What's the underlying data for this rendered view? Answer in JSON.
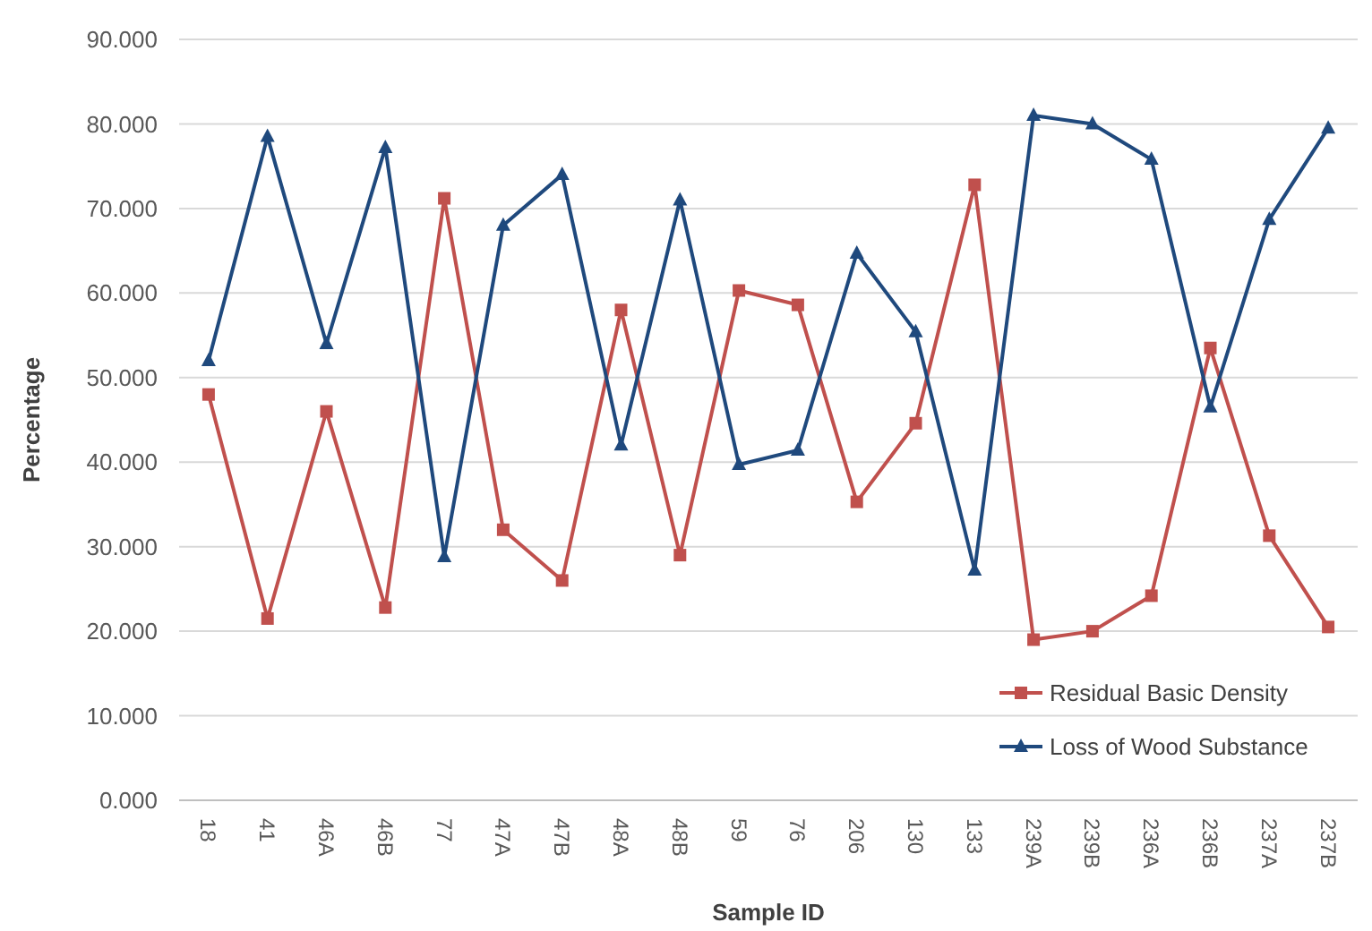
{
  "chart_data": {
    "type": "line",
    "xlabel": "Sample ID",
    "ylabel": "Percentage",
    "categories": [
      "18",
      "41",
      "46A",
      "46B",
      "77",
      "47A",
      "47B",
      "48A",
      "48B",
      "59",
      "76",
      "206",
      "130",
      "133",
      "239A",
      "239B",
      "236A",
      "236B",
      "237A",
      "237B"
    ],
    "series": [
      {
        "name": "Residual Basic Density",
        "color": "#c0504d",
        "marker": "square",
        "values": [
          48,
          21.5,
          46,
          22.8,
          71.2,
          32,
          26,
          58,
          29,
          60.3,
          58.6,
          35.3,
          44.6,
          72.8,
          19,
          20,
          24.2,
          53.5,
          31.3,
          20.5
        ]
      },
      {
        "name": "Loss of Wood Substance",
        "color": "#1f497d",
        "marker": "triangle",
        "values": [
          52,
          78.5,
          54,
          77.2,
          28.8,
          68,
          74,
          42,
          71,
          39.7,
          41.4,
          64.7,
          55.4,
          27.2,
          81,
          80,
          75.8,
          46.5,
          68.7,
          79.5
        ]
      }
    ],
    "ylim": [
      0,
      90
    ],
    "yticks": [
      {
        "value": 0,
        "label": "0.000"
      },
      {
        "value": 10,
        "label": "10.000"
      },
      {
        "value": 20,
        "label": "20.000"
      },
      {
        "value": 30,
        "label": "30.000"
      },
      {
        "value": 40,
        "label": "40.000"
      },
      {
        "value": 50,
        "label": "50.000"
      },
      {
        "value": 60,
        "label": "60.000"
      },
      {
        "value": 70,
        "label": "70.000"
      },
      {
        "value": 80,
        "label": "80.000"
      },
      {
        "value": 90,
        "label": "90.000"
      }
    ],
    "grid": "y",
    "legend": "bottom right",
    "line_style": "solid"
  }
}
